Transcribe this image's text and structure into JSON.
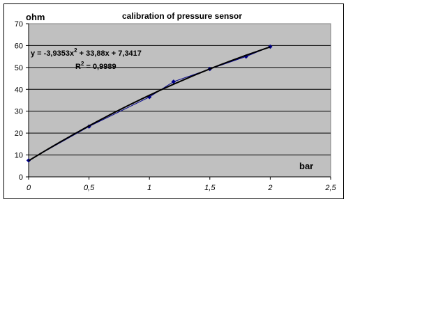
{
  "chart_data": {
    "type": "scatter",
    "title": "calibration of pressure sensor",
    "xlabel": "bar",
    "ylabel": "ohm",
    "xlim": [
      0,
      2.5
    ],
    "ylim": [
      0,
      70
    ],
    "x_ticks": [
      "0",
      "0,5",
      "1",
      "1,5",
      "2",
      "2,5"
    ],
    "y_ticks": [
      "0",
      "10",
      "20",
      "30",
      "40",
      "50",
      "60",
      "70"
    ],
    "x_tick_values": [
      0,
      0.5,
      1,
      1.5,
      2,
      2.5
    ],
    "y_tick_values": [
      0,
      10,
      20,
      30,
      40,
      50,
      60,
      70
    ],
    "grid": {
      "horizontal": true,
      "vertical": false
    },
    "plot_background": "#c0c0c0",
    "series": [
      {
        "values": [
          {
            "x": 0,
            "y": 7.5
          },
          {
            "x": 0.5,
            "y": 23
          },
          {
            "x": 1,
            "y": 36.5
          },
          {
            "x": 1.2,
            "y": 43.5
          },
          {
            "x": 1.5,
            "y": 49.3
          },
          {
            "x": 1.8,
            "y": 55
          },
          {
            "x": 2,
            "y": 59.5
          }
        ],
        "color": "#00008b",
        "marker": "diamond"
      }
    ],
    "trendline": {
      "type": "polynomial",
      "order": 2,
      "coefficients": [
        -3.9353,
        33.88,
        7.3417
      ],
      "x_range": [
        0,
        2
      ],
      "color": "#000000"
    },
    "annotations": {
      "equation_main": "y = -3,9353x",
      "equation_exp": "2",
      "equation_rest": " + 33,88x + 7,3417",
      "r2_prefix": "R",
      "r2_exp": "2",
      "r2_rest": " = 0,9989"
    }
  }
}
